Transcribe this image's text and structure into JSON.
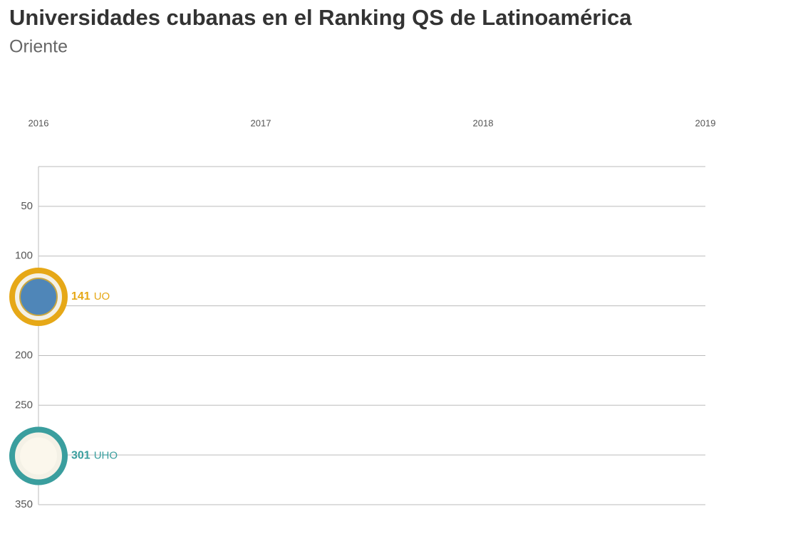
{
  "chart_data": {
    "type": "line",
    "title": "Universidades cubanas en el Ranking QS de Latinoamérica",
    "subtitle": "Oriente",
    "categories": [
      "2016",
      "2017",
      "2018",
      "2019"
    ],
    "series": [
      {
        "name": "UO",
        "color": "#e6a817",
        "values": [
          141,
          null,
          null,
          null
        ]
      },
      {
        "name": "UHO",
        "color": "#3a9e9e",
        "values": [
          301,
          null,
          null,
          null
        ]
      }
    ],
    "ylim": [
      10,
      350
    ],
    "y_inverted": true,
    "yticks": [
      50,
      100,
      150,
      200,
      250,
      300,
      350
    ],
    "grid": true
  }
}
